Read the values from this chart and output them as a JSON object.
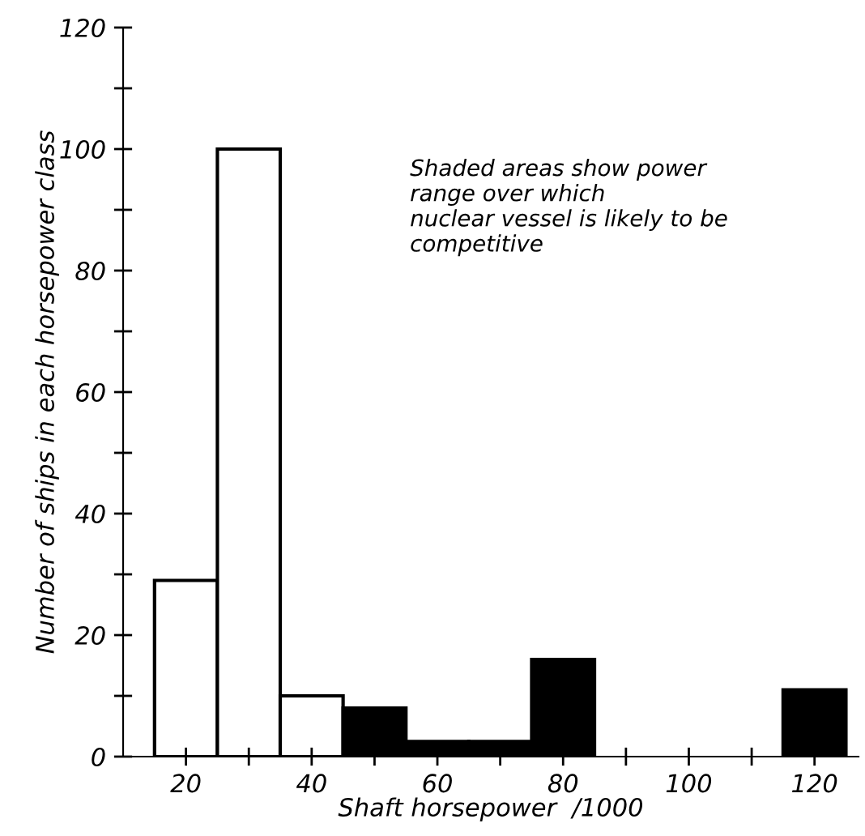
{
  "chart_data": {
    "type": "histogram",
    "xlabel": "Shaft horsepower  /1000",
    "ylabel": "Number of ships in each horsepower class",
    "bins": [
      15,
      25,
      35,
      45,
      55,
      65,
      75,
      85,
      95,
      105,
      115,
      125
    ],
    "values": [
      29,
      100,
      10,
      8,
      2.5,
      2.5,
      16,
      0,
      0,
      0,
      11
    ],
    "colors": [
      "#ffffff",
      "#ffffff",
      "#ffffff",
      "#000000",
      "#000000",
      "#000000",
      "#000000",
      "#000000",
      "#000000",
      "#000000",
      "#000000"
    ],
    "xlim": [
      10,
      127
    ],
    "ylim": [
      0,
      120
    ],
    "xticks": [
      20,
      {
        "value": 30,
        "label": null
      },
      40,
      {
        "value": 50,
        "label": null
      },
      60,
      {
        "value": 70,
        "label": null
      },
      80,
      {
        "value": 90,
        "label": null
      },
      100,
      {
        "value": 110,
        "label": null
      },
      120
    ],
    "yticks": [
      0,
      {
        "value": 10,
        "label": null
      },
      20,
      {
        "value": 30,
        "label": null
      },
      40,
      {
        "value": 50,
        "label": null
      },
      60,
      {
        "value": 70,
        "label": null
      },
      80,
      {
        "value": 90,
        "label": null
      },
      100,
      {
        "value": 110,
        "label": null
      },
      120
    ],
    "annotations": [
      "Shaded areas show power\nrange over which\nnuclear vessel is likely to be\ncompetitive"
    ],
    "grid": false
  }
}
